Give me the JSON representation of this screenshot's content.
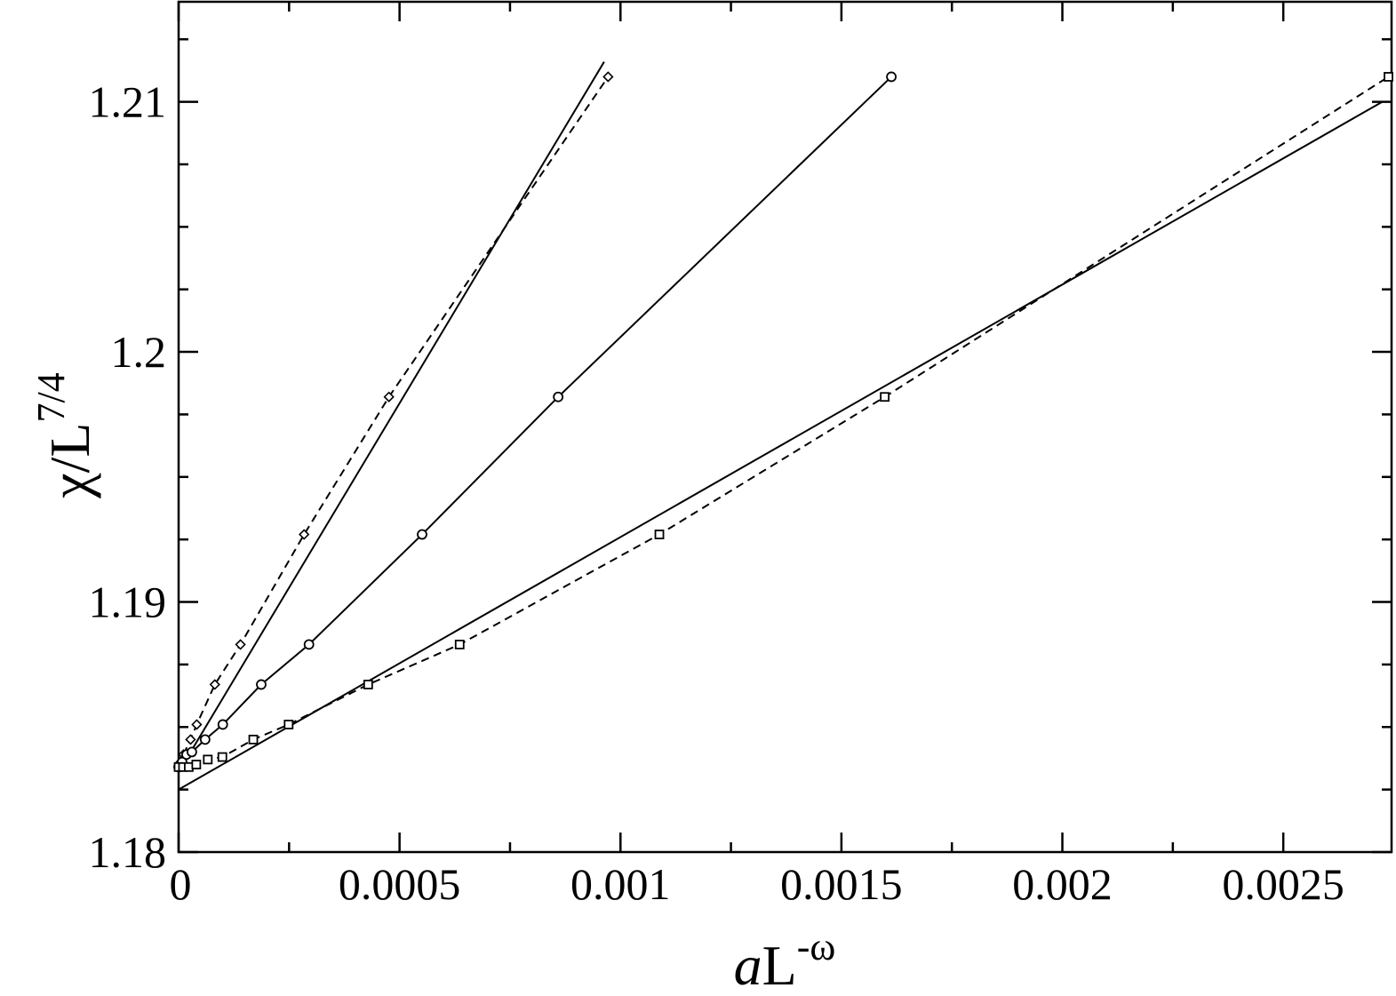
{
  "chart_data": {
    "type": "line",
    "title": "",
    "xlabel": {
      "prefix": "a",
      "base": "L",
      "sup": "-ω"
    },
    "ylabel": {
      "base": "χ/L",
      "sup": "7/4"
    },
    "xlim": [
      0,
      0.002745
    ],
    "ylim": [
      1.18,
      1.214
    ],
    "x_ticks": [
      {
        "value": 0,
        "label": "0"
      },
      {
        "value": 0.0005,
        "label": "0.0005"
      },
      {
        "value": 0.001,
        "label": "0.001"
      },
      {
        "value": 0.0015,
        "label": "0.0015"
      },
      {
        "value": 0.002,
        "label": "0.002"
      },
      {
        "value": 0.0025,
        "label": "0.0025"
      }
    ],
    "y_ticks": [
      {
        "value": 1.18,
        "label": "1.18"
      },
      {
        "value": 1.19,
        "label": "1.19"
      },
      {
        "value": 1.2,
        "label": "1.2"
      },
      {
        "value": 1.21,
        "label": "1.21"
      }
    ],
    "grid": false,
    "series": [
      {
        "marker": "diamond",
        "line": "dashed",
        "points": [
          [
            0.0,
            1.1834
          ],
          [
            5e-06,
            1.1836
          ],
          [
            1.1e-05,
            1.1839
          ],
          [
            2.7e-05,
            1.1845
          ],
          [
            4.1e-05,
            1.1851
          ],
          [
            8.2e-05,
            1.1867
          ],
          [
            0.00014,
            1.1883
          ],
          [
            0.000284,
            1.1927
          ],
          [
            0.000476,
            1.1982
          ],
          [
            0.000972,
            1.211
          ]
        ]
      },
      {
        "marker": "circle",
        "line": "solid",
        "points": [
          [
            0.0,
            1.1834
          ],
          [
            8e-06,
            1.1836
          ],
          [
            1.8e-05,
            1.1839
          ],
          [
            3e-05,
            1.184
          ],
          [
            6e-05,
            1.1845
          ],
          [
            0.0001,
            1.1851
          ],
          [
            0.000187,
            1.1867
          ],
          [
            0.000295,
            1.1883
          ],
          [
            0.000551,
            1.1927
          ],
          [
            0.000859,
            1.1982
          ],
          [
            0.001613,
            1.211
          ]
        ]
      },
      {
        "marker": "square",
        "line": "dashed",
        "points": [
          [
            0.0,
            1.1834
          ],
          [
            1e-05,
            1.1834
          ],
          [
            2.3e-05,
            1.1834
          ],
          [
            4e-05,
            1.1835
          ],
          [
            6.6e-05,
            1.1837
          ],
          [
            9.9e-05,
            1.1838
          ],
          [
            0.000169,
            1.1845
          ],
          [
            0.000249,
            1.1851
          ],
          [
            0.000429,
            1.1867
          ],
          [
            0.000636,
            1.1883
          ],
          [
            0.001088,
            1.1927
          ],
          [
            0.001598,
            1.1982
          ],
          [
            0.002738,
            1.211
          ]
        ]
      }
    ],
    "fit_lines": [
      {
        "line": "solid",
        "points": [
          [
            0.0,
            1.1832
          ],
          [
            0.000963,
            1.2116
          ]
        ]
      },
      {
        "line": "solid",
        "points": [
          [
            0.0,
            1.1825
          ],
          [
            0.002724,
            1.21
          ]
        ]
      }
    ]
  }
}
